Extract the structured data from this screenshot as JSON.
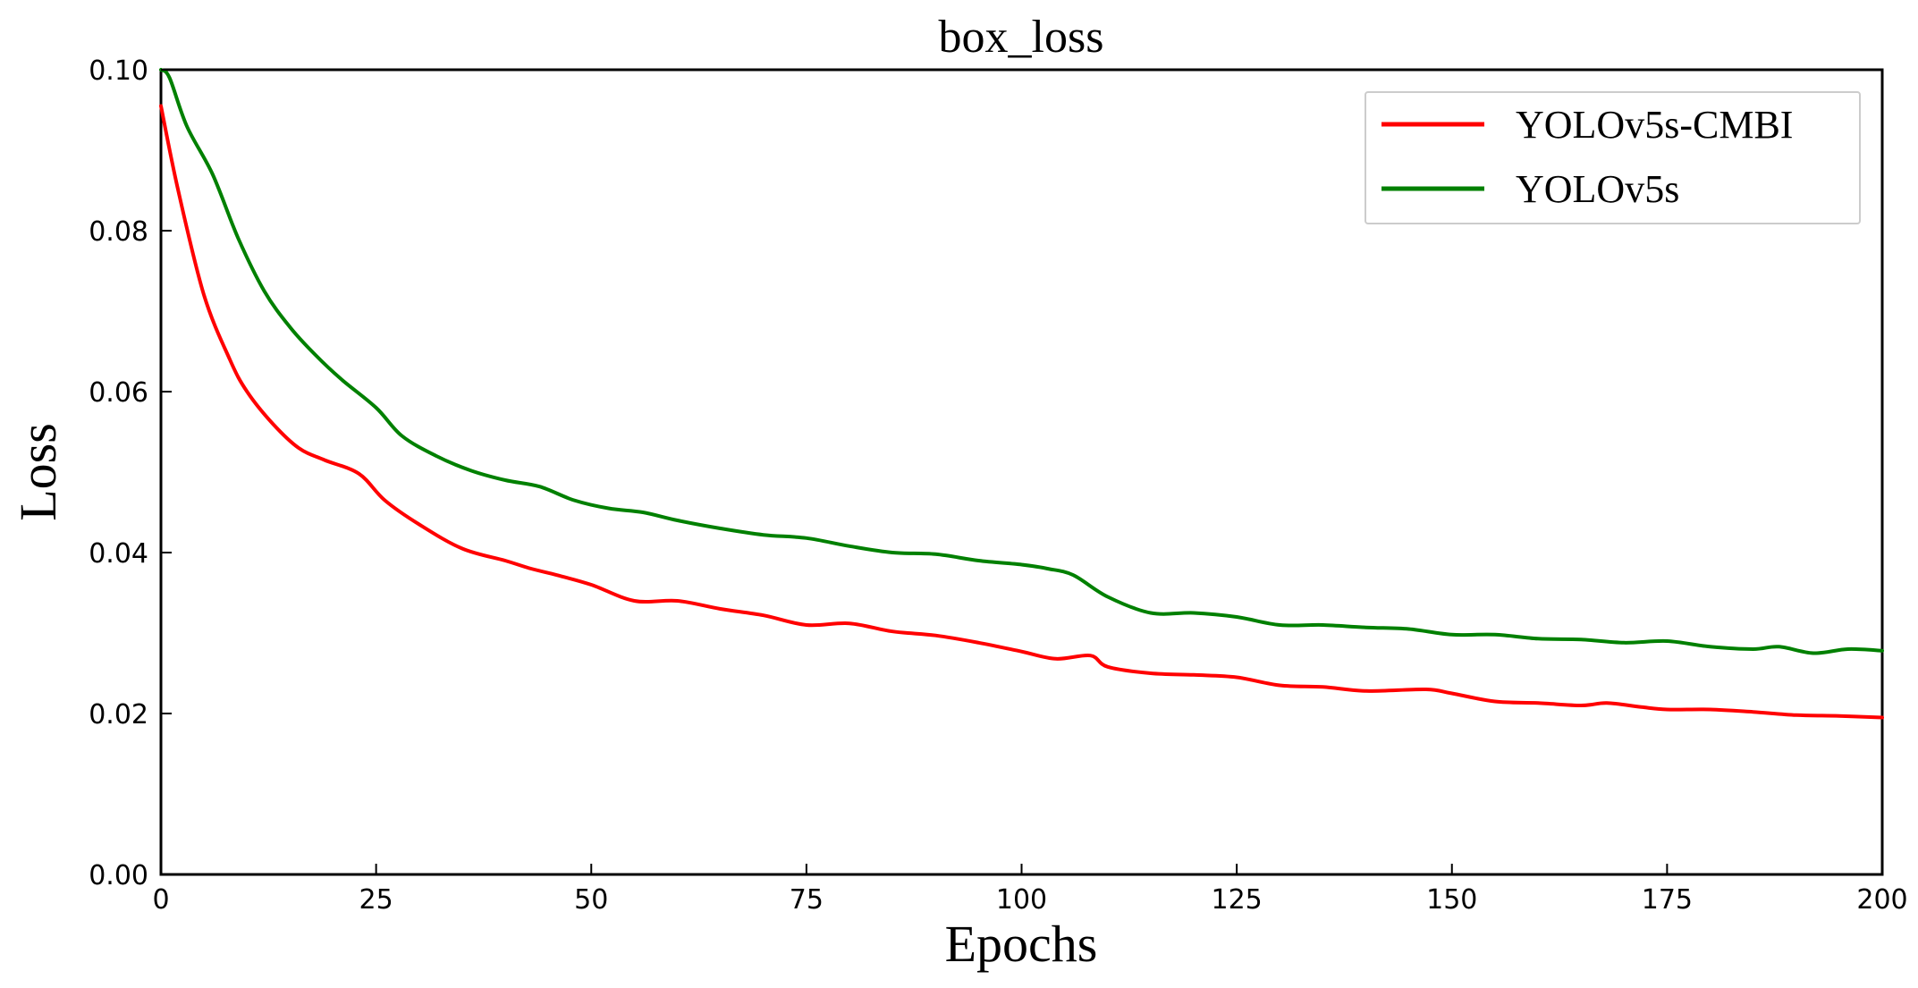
{
  "chart_data": {
    "type": "line",
    "title": "box_loss",
    "xlabel": "Epochs",
    "ylabel": "Loss",
    "xlim": [
      0,
      200
    ],
    "ylim": [
      0,
      0.1
    ],
    "xticks": [
      "0",
      "25",
      "50",
      "75",
      "100",
      "125",
      "150",
      "175",
      "200"
    ],
    "yticks": [
      "0.00",
      "0.02",
      "0.04",
      "0.06",
      "0.08",
      "0.10"
    ],
    "grid": false,
    "legend": "top-right",
    "series": [
      {
        "name": "YOLOv5s-CMBI",
        "color": "#ff0000",
        "x": [
          0,
          2,
          5,
          8,
          10,
          13,
          16,
          19,
          23,
          26,
          30,
          35,
          40,
          43,
          46,
          50,
          55,
          60,
          65,
          70,
          75,
          80,
          85,
          90,
          95,
          100,
          104,
          108,
          110,
          115,
          120,
          125,
          130,
          135,
          140,
          147,
          150,
          155,
          160,
          165,
          168,
          172,
          175,
          180,
          185,
          190,
          195,
          200
        ],
        "y": [
          0.0955,
          0.085,
          0.072,
          0.064,
          0.06,
          0.056,
          0.053,
          0.0515,
          0.0498,
          0.0465,
          0.0435,
          0.0405,
          0.039,
          0.038,
          0.0372,
          0.036,
          0.034,
          0.034,
          0.033,
          0.0322,
          0.031,
          0.0312,
          0.0302,
          0.0297,
          0.0288,
          0.0277,
          0.0268,
          0.0272,
          0.0258,
          0.025,
          0.0248,
          0.0245,
          0.0235,
          0.0233,
          0.0228,
          0.023,
          0.0225,
          0.0215,
          0.0213,
          0.021,
          0.0213,
          0.0208,
          0.0205,
          0.0205,
          0.0202,
          0.0198,
          0.0197,
          0.0195
        ]
      },
      {
        "name": "YOLOv5s",
        "color": "#008000",
        "x": [
          0,
          1,
          3,
          6,
          9,
          12,
          15,
          18,
          21,
          25,
          28,
          32,
          36,
          40,
          44,
          48,
          52,
          56,
          60,
          65,
          70,
          75,
          80,
          85,
          90,
          95,
          100,
          103,
          106,
          110,
          115,
          120,
          125,
          130,
          135,
          140,
          145,
          150,
          155,
          160,
          165,
          170,
          175,
          180,
          185,
          188,
          192,
          196,
          200
        ],
        "y": [
          0.1,
          0.099,
          0.093,
          0.087,
          0.079,
          0.0725,
          0.068,
          0.0645,
          0.0615,
          0.058,
          0.0545,
          0.052,
          0.0502,
          0.049,
          0.0482,
          0.0465,
          0.0455,
          0.045,
          0.044,
          0.043,
          0.0422,
          0.0418,
          0.0408,
          0.04,
          0.0398,
          0.039,
          0.0385,
          0.038,
          0.0372,
          0.0345,
          0.0325,
          0.0325,
          0.032,
          0.031,
          0.031,
          0.0307,
          0.0305,
          0.0298,
          0.0298,
          0.0293,
          0.0292,
          0.0288,
          0.029,
          0.0283,
          0.028,
          0.0283,
          0.0275,
          0.028,
          0.0278
        ]
      }
    ]
  }
}
